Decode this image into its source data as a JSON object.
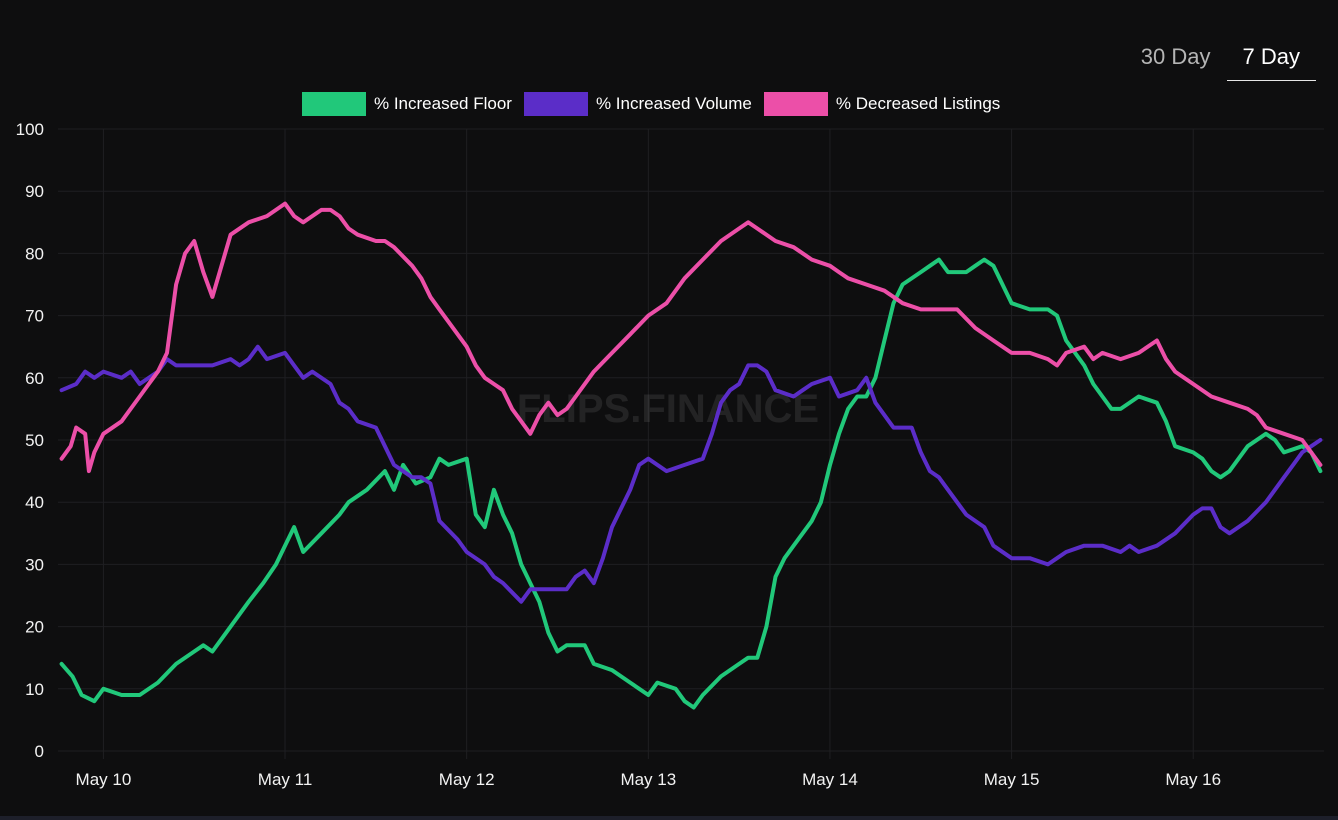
{
  "tabs": {
    "items": [
      {
        "label": "30 Day",
        "active": false
      },
      {
        "label": "7 Day",
        "active": true
      }
    ]
  },
  "watermark": "FLIPS.FINANCE",
  "chart_data": {
    "type": "line",
    "title": "",
    "xlabel": "",
    "ylabel": "",
    "ylim": [
      0,
      100
    ],
    "yticks": [
      "0",
      "10",
      "20",
      "30",
      "40",
      "50",
      "60",
      "70",
      "80",
      "90",
      "100"
    ],
    "x_tick_labels": [
      "May 10",
      "May 11",
      "May 12",
      "May 13",
      "May 14",
      "May 15",
      "May 16"
    ],
    "xlim": [
      -0.25,
      6.72
    ],
    "grid": true,
    "legend_position": "top-center",
    "series": [
      {
        "name": "% Increased Floor",
        "color": "#21c87a",
        "points": [
          [
            -0.23,
            14
          ],
          [
            -0.17,
            12
          ],
          [
            -0.12,
            9
          ],
          [
            -0.05,
            8
          ],
          [
            0,
            10
          ],
          [
            0.1,
            9
          ],
          [
            0.2,
            9
          ],
          [
            0.3,
            11
          ],
          [
            0.4,
            14
          ],
          [
            0.5,
            16
          ],
          [
            0.55,
            17
          ],
          [
            0.6,
            16
          ],
          [
            0.7,
            20
          ],
          [
            0.8,
            24
          ],
          [
            0.88,
            27
          ],
          [
            0.95,
            30
          ],
          [
            1.0,
            33
          ],
          [
            1.05,
            36
          ],
          [
            1.1,
            32
          ],
          [
            1.2,
            35
          ],
          [
            1.3,
            38
          ],
          [
            1.35,
            40
          ],
          [
            1.45,
            42
          ],
          [
            1.55,
            45
          ],
          [
            1.6,
            42
          ],
          [
            1.65,
            46
          ],
          [
            1.72,
            43
          ],
          [
            1.8,
            44
          ],
          [
            1.85,
            47
          ],
          [
            1.9,
            46
          ],
          [
            2.0,
            47
          ],
          [
            2.05,
            38
          ],
          [
            2.1,
            36
          ],
          [
            2.15,
            42
          ],
          [
            2.2,
            38
          ],
          [
            2.25,
            35
          ],
          [
            2.3,
            30
          ],
          [
            2.4,
            24
          ],
          [
            2.45,
            19
          ],
          [
            2.5,
            16
          ],
          [
            2.55,
            17
          ],
          [
            2.65,
            17
          ],
          [
            2.7,
            14
          ],
          [
            2.8,
            13
          ],
          [
            2.9,
            11
          ],
          [
            3.0,
            9
          ],
          [
            3.05,
            11
          ],
          [
            3.15,
            10
          ],
          [
            3.2,
            8
          ],
          [
            3.25,
            7
          ],
          [
            3.3,
            9
          ],
          [
            3.4,
            12
          ],
          [
            3.5,
            14
          ],
          [
            3.55,
            15
          ],
          [
            3.6,
            15
          ],
          [
            3.65,
            20
          ],
          [
            3.7,
            28
          ],
          [
            3.75,
            31
          ],
          [
            3.8,
            33
          ],
          [
            3.9,
            37
          ],
          [
            3.95,
            40
          ],
          [
            4.0,
            46
          ],
          [
            4.05,
            51
          ],
          [
            4.1,
            55
          ],
          [
            4.15,
            57
          ],
          [
            4.2,
            57
          ],
          [
            4.25,
            60
          ],
          [
            4.3,
            66
          ],
          [
            4.35,
            72
          ],
          [
            4.4,
            75
          ],
          [
            4.5,
            77
          ],
          [
            4.55,
            78
          ],
          [
            4.6,
            79
          ],
          [
            4.65,
            77
          ],
          [
            4.75,
            77
          ],
          [
            4.8,
            78
          ],
          [
            4.85,
            79
          ],
          [
            4.9,
            78
          ],
          [
            5.0,
            72
          ],
          [
            5.1,
            71
          ],
          [
            5.2,
            71
          ],
          [
            5.25,
            70
          ],
          [
            5.3,
            66
          ],
          [
            5.4,
            62
          ],
          [
            5.45,
            59
          ],
          [
            5.5,
            57
          ],
          [
            5.55,
            55
          ],
          [
            5.6,
            55
          ],
          [
            5.7,
            57
          ],
          [
            5.8,
            56
          ],
          [
            5.85,
            53
          ],
          [
            5.9,
            49
          ],
          [
            6.0,
            48
          ],
          [
            6.05,
            47
          ],
          [
            6.1,
            45
          ],
          [
            6.15,
            44
          ],
          [
            6.2,
            45
          ],
          [
            6.3,
            49
          ],
          [
            6.4,
            51
          ],
          [
            6.45,
            50
          ],
          [
            6.5,
            48
          ],
          [
            6.6,
            49
          ],
          [
            6.65,
            48
          ],
          [
            6.7,
            45
          ]
        ]
      },
      {
        "name": "% Increased Volume",
        "color": "#5b2dc8",
        "points": [
          [
            -0.23,
            58
          ],
          [
            -0.15,
            59
          ],
          [
            -0.1,
            61
          ],
          [
            -0.05,
            60
          ],
          [
            0.0,
            61
          ],
          [
            0.1,
            60
          ],
          [
            0.15,
            61
          ],
          [
            0.2,
            59
          ],
          [
            0.3,
            61
          ],
          [
            0.35,
            63
          ],
          [
            0.4,
            62
          ],
          [
            0.5,
            62
          ],
          [
            0.6,
            62
          ],
          [
            0.7,
            63
          ],
          [
            0.75,
            62
          ],
          [
            0.8,
            63
          ],
          [
            0.85,
            65
          ],
          [
            0.9,
            63
          ],
          [
            1.0,
            64
          ],
          [
            1.05,
            62
          ],
          [
            1.1,
            60
          ],
          [
            1.15,
            61
          ],
          [
            1.25,
            59
          ],
          [
            1.3,
            56
          ],
          [
            1.35,
            55
          ],
          [
            1.4,
            53
          ],
          [
            1.5,
            52
          ],
          [
            1.6,
            46
          ],
          [
            1.7,
            44
          ],
          [
            1.75,
            44
          ],
          [
            1.8,
            43
          ],
          [
            1.85,
            37
          ],
          [
            1.95,
            34
          ],
          [
            2.0,
            32
          ],
          [
            2.1,
            30
          ],
          [
            2.15,
            28
          ],
          [
            2.2,
            27
          ],
          [
            2.3,
            24
          ],
          [
            2.35,
            26
          ],
          [
            2.4,
            26
          ],
          [
            2.45,
            26
          ],
          [
            2.55,
            26
          ],
          [
            2.6,
            28
          ],
          [
            2.65,
            29
          ],
          [
            2.7,
            27
          ],
          [
            2.75,
            31
          ],
          [
            2.8,
            36
          ],
          [
            2.85,
            39
          ],
          [
            2.9,
            42
          ],
          [
            2.95,
            46
          ],
          [
            3.0,
            47
          ],
          [
            3.1,
            45
          ],
          [
            3.2,
            46
          ],
          [
            3.3,
            47
          ],
          [
            3.35,
            51
          ],
          [
            3.4,
            56
          ],
          [
            3.45,
            58
          ],
          [
            3.5,
            59
          ],
          [
            3.55,
            62
          ],
          [
            3.6,
            62
          ],
          [
            3.65,
            61
          ],
          [
            3.7,
            58
          ],
          [
            3.8,
            57
          ],
          [
            3.85,
            58
          ],
          [
            3.9,
            59
          ],
          [
            4.0,
            60
          ],
          [
            4.05,
            57
          ],
          [
            4.15,
            58
          ],
          [
            4.2,
            60
          ],
          [
            4.25,
            56
          ],
          [
            4.3,
            54
          ],
          [
            4.35,
            52
          ],
          [
            4.45,
            52
          ],
          [
            4.5,
            48
          ],
          [
            4.55,
            45
          ],
          [
            4.6,
            44
          ],
          [
            4.65,
            42
          ],
          [
            4.7,
            40
          ],
          [
            4.75,
            38
          ],
          [
            4.85,
            36
          ],
          [
            4.9,
            33
          ],
          [
            5.0,
            31
          ],
          [
            5.1,
            31
          ],
          [
            5.2,
            30
          ],
          [
            5.25,
            31
          ],
          [
            5.3,
            32
          ],
          [
            5.4,
            33
          ],
          [
            5.5,
            33
          ],
          [
            5.6,
            32
          ],
          [
            5.65,
            33
          ],
          [
            5.7,
            32
          ],
          [
            5.8,
            33
          ],
          [
            5.9,
            35
          ],
          [
            6.0,
            38
          ],
          [
            6.05,
            39
          ],
          [
            6.1,
            39
          ],
          [
            6.15,
            36
          ],
          [
            6.2,
            35
          ],
          [
            6.3,
            37
          ],
          [
            6.4,
            40
          ],
          [
            6.5,
            44
          ],
          [
            6.55,
            46
          ],
          [
            6.6,
            48
          ],
          [
            6.65,
            49
          ],
          [
            6.7,
            50
          ]
        ]
      },
      {
        "name": "% Decreased Listings",
        "color": "#ec4fa8",
        "points": [
          [
            -0.23,
            47
          ],
          [
            -0.18,
            49
          ],
          [
            -0.15,
            52
          ],
          [
            -0.1,
            51
          ],
          [
            -0.08,
            45
          ],
          [
            -0.05,
            48
          ],
          [
            0.0,
            51
          ],
          [
            0.1,
            53
          ],
          [
            0.2,
            57
          ],
          [
            0.25,
            59
          ],
          [
            0.3,
            61
          ],
          [
            0.35,
            64
          ],
          [
            0.4,
            75
          ],
          [
            0.45,
            80
          ],
          [
            0.5,
            82
          ],
          [
            0.55,
            77
          ],
          [
            0.6,
            73
          ],
          [
            0.65,
            78
          ],
          [
            0.7,
            83
          ],
          [
            0.8,
            85
          ],
          [
            0.9,
            86
          ],
          [
            1.0,
            88
          ],
          [
            1.05,
            86
          ],
          [
            1.1,
            85
          ],
          [
            1.2,
            87
          ],
          [
            1.25,
            87
          ],
          [
            1.3,
            86
          ],
          [
            1.35,
            84
          ],
          [
            1.4,
            83
          ],
          [
            1.5,
            82
          ],
          [
            1.55,
            82
          ],
          [
            1.6,
            81
          ],
          [
            1.7,
            78
          ],
          [
            1.75,
            76
          ],
          [
            1.8,
            73
          ],
          [
            1.85,
            71
          ],
          [
            1.9,
            69
          ],
          [
            2.0,
            65
          ],
          [
            2.05,
            62
          ],
          [
            2.1,
            60
          ],
          [
            2.15,
            59
          ],
          [
            2.2,
            58
          ],
          [
            2.25,
            55
          ],
          [
            2.3,
            53
          ],
          [
            2.35,
            51
          ],
          [
            2.4,
            54
          ],
          [
            2.45,
            56
          ],
          [
            2.5,
            54
          ],
          [
            2.55,
            55
          ],
          [
            2.6,
            57
          ],
          [
            2.7,
            61
          ],
          [
            2.8,
            64
          ],
          [
            2.9,
            67
          ],
          [
            3.0,
            70
          ],
          [
            3.1,
            72
          ],
          [
            3.2,
            76
          ],
          [
            3.3,
            79
          ],
          [
            3.4,
            82
          ],
          [
            3.5,
            84
          ],
          [
            3.55,
            85
          ],
          [
            3.6,
            84
          ],
          [
            3.7,
            82
          ],
          [
            3.8,
            81
          ],
          [
            3.9,
            79
          ],
          [
            4.0,
            78
          ],
          [
            4.05,
            77
          ],
          [
            4.1,
            76
          ],
          [
            4.2,
            75
          ],
          [
            4.3,
            74
          ],
          [
            4.4,
            72
          ],
          [
            4.5,
            71
          ],
          [
            4.6,
            71
          ],
          [
            4.7,
            71
          ],
          [
            4.8,
            68
          ],
          [
            4.9,
            66
          ],
          [
            5.0,
            64
          ],
          [
            5.1,
            64
          ],
          [
            5.2,
            63
          ],
          [
            5.25,
            62
          ],
          [
            5.3,
            64
          ],
          [
            5.4,
            65
          ],
          [
            5.45,
            63
          ],
          [
            5.5,
            64
          ],
          [
            5.6,
            63
          ],
          [
            5.7,
            64
          ],
          [
            5.8,
            66
          ],
          [
            5.85,
            63
          ],
          [
            5.9,
            61
          ],
          [
            6.0,
            59
          ],
          [
            6.1,
            57
          ],
          [
            6.2,
            56
          ],
          [
            6.3,
            55
          ],
          [
            6.35,
            54
          ],
          [
            6.4,
            52
          ],
          [
            6.5,
            51
          ],
          [
            6.6,
            50
          ],
          [
            6.7,
            46
          ]
        ]
      }
    ]
  }
}
